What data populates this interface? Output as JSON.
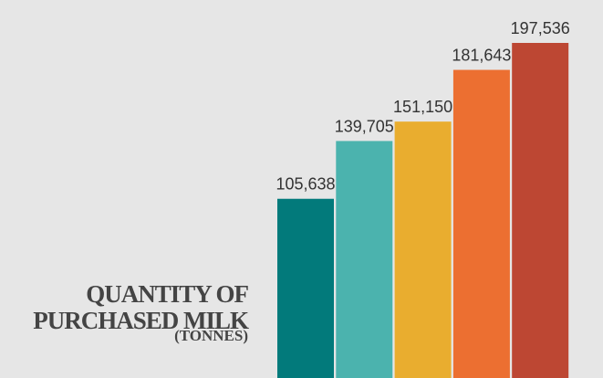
{
  "chart_data": {
    "type": "bar",
    "title": "QUANTITY OF PURCHASED MILK",
    "subtitle": "(TONNES)",
    "values": [
      105638,
      139705,
      151150,
      181643,
      197536
    ],
    "value_labels": [
      "105,638",
      "139,705",
      "151,150",
      "181,643",
      "197,536"
    ],
    "colors": [
      "#027a7b",
      "#4bb3ae",
      "#e9ad2f",
      "#ec6f31",
      "#bd4733"
    ]
  }
}
